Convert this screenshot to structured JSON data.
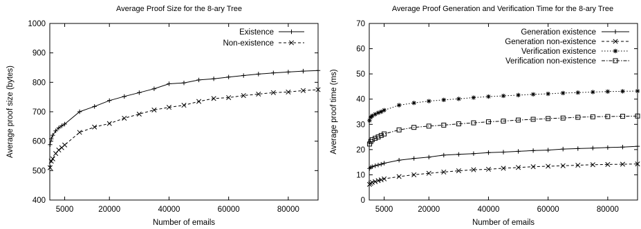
{
  "chart_data": [
    {
      "type": "line",
      "title": "Average Proof Size for the 8-ary Tree",
      "xlabel": "Number of emails",
      "ylabel": "Average proof size (bytes)",
      "xlim": [
        0,
        90000
      ],
      "ylim": [
        400,
        1000
      ],
      "xticks": [
        5000,
        20000,
        40000,
        60000,
        80000
      ],
      "xtick_labels": [
        "5000",
        "20000",
        "40000",
        "60000",
        "80000"
      ],
      "yticks": [
        400,
        500,
        600,
        700,
        800,
        900,
        1000
      ],
      "ytick_labels": [
        "400",
        "500",
        "600",
        "700",
        "800",
        "900",
        "1000"
      ],
      "grid": false,
      "legend_position": "top-right",
      "series": [
        {
          "name": "Existence",
          "marker": "plus",
          "dash": "solid",
          "x": [
            100,
            500,
            1000,
            2000,
            3000,
            4000,
            5000,
            10000,
            15000,
            20000,
            25000,
            30000,
            35000,
            40000,
            45000,
            50000,
            55000,
            60000,
            65000,
            70000,
            75000,
            80000,
            85000,
            90000
          ],
          "y": [
            588,
            608,
            620,
            635,
            645,
            652,
            658,
            700,
            718,
            738,
            752,
            765,
            778,
            795,
            798,
            808,
            812,
            818,
            823,
            828,
            832,
            835,
            838,
            840
          ]
        },
        {
          "name": "Non-existence",
          "marker": "x",
          "dash": "dashed",
          "x": [
            100,
            500,
            1000,
            2000,
            3000,
            4000,
            5000,
            10000,
            15000,
            20000,
            25000,
            30000,
            35000,
            40000,
            45000,
            50000,
            55000,
            60000,
            65000,
            70000,
            75000,
            80000,
            85000,
            90000
          ],
          "y": [
            510,
            532,
            540,
            558,
            570,
            578,
            587,
            630,
            648,
            660,
            678,
            692,
            706,
            715,
            722,
            735,
            745,
            748,
            755,
            760,
            765,
            767,
            772,
            775
          ]
        }
      ]
    },
    {
      "type": "line",
      "title": "Average Proof Generation and Verification Time for the 8-ary Tree",
      "xlabel": "Number of emails",
      "ylabel": "Average proof time (ms)",
      "xlim": [
        0,
        90000
      ],
      "ylim": [
        0,
        70
      ],
      "xticks": [
        5000,
        20000,
        40000,
        60000,
        80000
      ],
      "xtick_labels": [
        "5000",
        "20000",
        "40000",
        "60000",
        "80000"
      ],
      "yticks": [
        0,
        10,
        20,
        30,
        40,
        50,
        60,
        70
      ],
      "ytick_labels": [
        "0",
        "10",
        "20",
        "30",
        "40",
        "50",
        "60",
        "70"
      ],
      "grid": false,
      "legend_position": "top-right",
      "series": [
        {
          "name": "Generation existence",
          "marker": "plus",
          "dash": "solid",
          "x": [
            100,
            500,
            1000,
            2000,
            3000,
            4000,
            5000,
            10000,
            15000,
            20000,
            25000,
            30000,
            35000,
            40000,
            45000,
            50000,
            55000,
            60000,
            65000,
            70000,
            75000,
            80000,
            85000,
            90000
          ],
          "y": [
            12.5,
            13.0,
            13.2,
            13.6,
            13.9,
            14.2,
            14.6,
            15.8,
            16.5,
            17.0,
            17.8,
            18.1,
            18.4,
            18.8,
            19.0,
            19.3,
            19.6,
            19.8,
            20.2,
            20.4,
            20.6,
            20.8,
            21.0,
            21.3
          ]
        },
        {
          "name": "Generation non-existence",
          "marker": "x",
          "dash": "dashed",
          "x": [
            100,
            500,
            1000,
            2000,
            3000,
            4000,
            5000,
            10000,
            15000,
            20000,
            25000,
            30000,
            35000,
            40000,
            45000,
            50000,
            55000,
            60000,
            65000,
            70000,
            75000,
            80000,
            85000,
            90000
          ],
          "y": [
            6.2,
            6.6,
            7.0,
            7.3,
            7.7,
            8.0,
            8.4,
            9.3,
            10.0,
            10.6,
            11.1,
            11.6,
            12.0,
            12.2,
            12.6,
            12.9,
            13.2,
            13.4,
            13.6,
            13.8,
            14.0,
            14.1,
            14.2,
            14.3
          ]
        },
        {
          "name": "Verification existence",
          "marker": "star",
          "dash": "dotted",
          "x": [
            100,
            500,
            1000,
            2000,
            3000,
            4000,
            5000,
            10000,
            15000,
            20000,
            25000,
            30000,
            35000,
            40000,
            45000,
            50000,
            55000,
            60000,
            65000,
            70000,
            75000,
            80000,
            85000,
            90000
          ],
          "y": [
            31.5,
            32.8,
            33.4,
            34.0,
            34.6,
            35.0,
            35.6,
            37.6,
            38.5,
            39.2,
            39.7,
            40.1,
            40.6,
            41.0,
            41.3,
            41.6,
            41.9,
            42.1,
            42.4,
            42.6,
            42.8,
            43.0,
            43.1,
            43.2
          ]
        },
        {
          "name": "Verification non-existence",
          "marker": "square",
          "dash": "dashdot",
          "x": [
            100,
            500,
            1000,
            2000,
            3000,
            4000,
            5000,
            10000,
            15000,
            20000,
            25000,
            30000,
            35000,
            40000,
            45000,
            50000,
            55000,
            60000,
            65000,
            70000,
            75000,
            80000,
            85000,
            90000
          ],
          "y": [
            22.2,
            23.2,
            23.9,
            24.5,
            25.0,
            25.6,
            26.2,
            27.8,
            28.8,
            29.3,
            29.7,
            30.2,
            30.6,
            31.0,
            31.3,
            31.7,
            32.0,
            32.3,
            32.5,
            32.8,
            33.0,
            33.1,
            33.2,
            33.3
          ]
        }
      ]
    }
  ]
}
